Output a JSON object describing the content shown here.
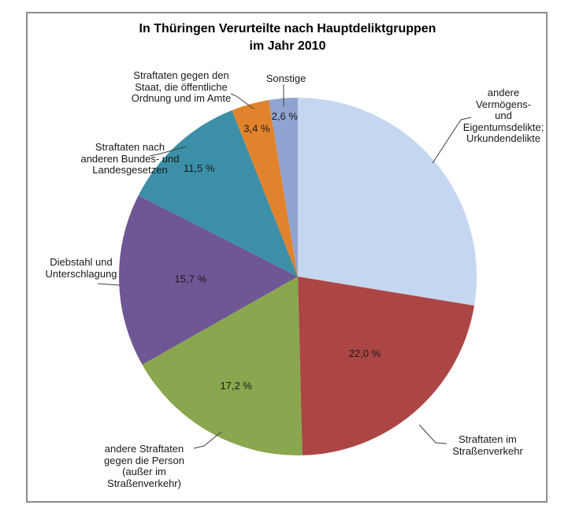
{
  "chart_data": {
    "type": "pie",
    "title": "In Thüringen Verurteilte nach Hauptdeliktgruppen\nim Jahr 2010",
    "unit": "%",
    "start_angle_deg": 0,
    "direction": "clockwise",
    "legend_position": "none",
    "slices": [
      {
        "label": "andere Vermögens- und Eigentumsdelikte; Urkundendelikte",
        "value": 27.6,
        "color": "#C5D7F0",
        "pct_label": null,
        "pct_r": 0
      },
      {
        "label": "Straftaten im Straßenverkehr",
        "value": 22.0,
        "color": "#AC4644",
        "pct_label": "22,0 %",
        "pct_r": 0.57
      },
      {
        "label": "andere Straftaten gegen die Person (außer im Straßenverkehr)",
        "value": 17.2,
        "color": "#8AA64F",
        "pct_label": "17,2 %",
        "pct_r": 0.7
      },
      {
        "label": "Diebstahl und Unterschlagung",
        "value": 15.7,
        "color": "#6F5694",
        "pct_label": "15,7 %",
        "pct_r": 0.6
      },
      {
        "label": "Straftaten nach anderen Bundes- und Landesgesetzen",
        "value": 11.5,
        "color": "#3C8FA6",
        "pct_label": "11,5 %",
        "pct_r": 0.82
      },
      {
        "label": "Straftaten gegen den Staat, die öffentliche Ordnung und im Amte",
        "value": 3.4,
        "color": "#E0832C",
        "pct_label": "3,4 %",
        "pct_r": 0.86
      },
      {
        "label": "Sonstige",
        "value": 2.6,
        "color": "#90A4D1",
        "pct_label": "2,6 %",
        "pct_r": 0.9
      }
    ]
  },
  "callouts": {
    "staat": "Straftaten gegen den\nStaat, die öffentliche\nOrdnung und im Amte",
    "sonstige": "Sonstige",
    "vermoegen": "andere Vermögens-\nund Eigentumsdelikte;\nUrkundendelikte",
    "bundesgesetze": "Straftaten nach\nanderen Bundes- und\nLandesgesetzen",
    "diebstahl": "Diebstahl und\nUnterschlagung",
    "person": "andere Straftaten\ngegen die Person\n(außer im\nStraßenverkehr)",
    "strassenverkehr": "Straftaten im\nStraßenverkehr"
  }
}
